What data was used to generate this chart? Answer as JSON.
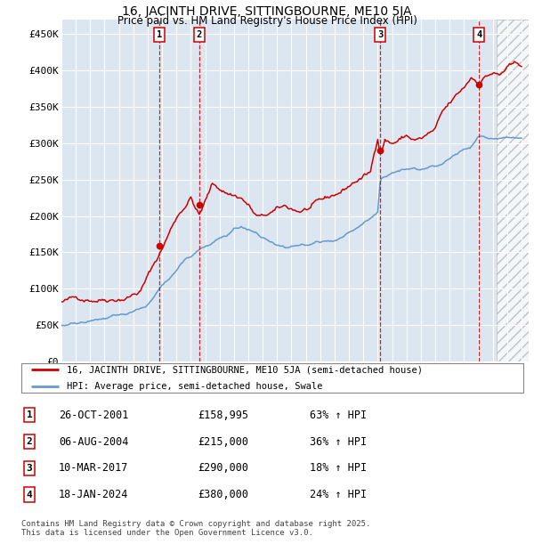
{
  "title": "16, JACINTH DRIVE, SITTINGBOURNE, ME10 5JA",
  "subtitle": "Price paid vs. HM Land Registry's House Price Index (HPI)",
  "background_color": "#ffffff",
  "plot_bg_color": "#dce6f1",
  "grid_color": "#ffffff",
  "sale_dates_num": [
    2001.82,
    2004.59,
    2017.19,
    2024.05
  ],
  "sale_prices": [
    158995,
    215000,
    290000,
    380000
  ],
  "sale_labels": [
    "1",
    "2",
    "3",
    "4"
  ],
  "legend_label_red": "16, JACINTH DRIVE, SITTINGBOURNE, ME10 5JA (semi-detached house)",
  "legend_label_blue": "HPI: Average price, semi-detached house, Swale",
  "table_data": [
    [
      "1",
      "26-OCT-2001",
      "£158,995",
      "63% ↑ HPI"
    ],
    [
      "2",
      "06-AUG-2004",
      "£215,000",
      "36% ↑ HPI"
    ],
    [
      "3",
      "10-MAR-2017",
      "£290,000",
      "18% ↑ HPI"
    ],
    [
      "4",
      "18-JAN-2024",
      "£380,000",
      "24% ↑ HPI"
    ]
  ],
  "footer": "Contains HM Land Registry data © Crown copyright and database right 2025.\nThis data is licensed under the Open Government Licence v3.0.",
  "xmin": 1995.0,
  "xmax": 2027.5,
  "ymin": 0,
  "ymax": 470000,
  "yticks": [
    0,
    50000,
    100000,
    150000,
    200000,
    250000,
    300000,
    350000,
    400000,
    450000
  ],
  "ytick_labels": [
    "£0",
    "£50K",
    "£100K",
    "£150K",
    "£200K",
    "£250K",
    "£300K",
    "£350K",
    "£400K",
    "£450K"
  ],
  "red_color": "#cc0000",
  "blue_color": "#6699cc",
  "shade_between_sales_color": "#dce6f1",
  "future_hatch_color": "#cccccc"
}
